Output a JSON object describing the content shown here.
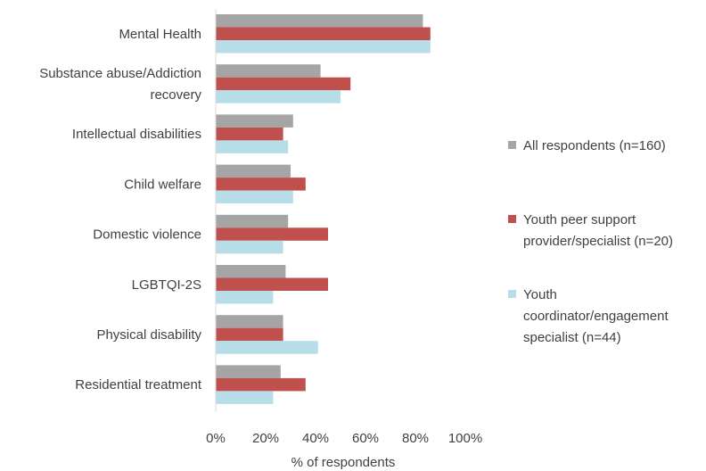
{
  "chart_data": {
    "type": "bar",
    "orientation": "horizontal",
    "categories": [
      "Mental Health",
      "Substance abuse/Addiction\nrecovery",
      "Intellectual disabilities",
      "Child welfare",
      "Domestic violence",
      "LGBTQI-2S",
      "Physical disability",
      "Residential treatment"
    ],
    "series": [
      {
        "name": "All respondents (n=160)",
        "color": "#a5a5a5",
        "values": [
          83,
          42,
          31,
          30,
          29,
          28,
          27,
          26
        ]
      },
      {
        "name": "Youth peer support\nprovider/specialist (n=20)",
        "color": "#c0504d",
        "values": [
          86,
          54,
          27,
          36,
          45,
          45,
          27,
          36
        ]
      },
      {
        "name": "Youth\ncoordinator/engagement\nspecialist (n=44)",
        "color": "#b7dee8",
        "values": [
          86,
          50,
          29,
          31,
          27,
          23,
          41,
          23
        ]
      }
    ],
    "xlim": [
      0,
      100
    ],
    "xticks": [
      "0%",
      "20%",
      "40%",
      "60%",
      "80%",
      "100%"
    ],
    "xlabel": "% of respondents",
    "ylabel": "",
    "title": "",
    "legend_position": "right",
    "grid": false
  }
}
